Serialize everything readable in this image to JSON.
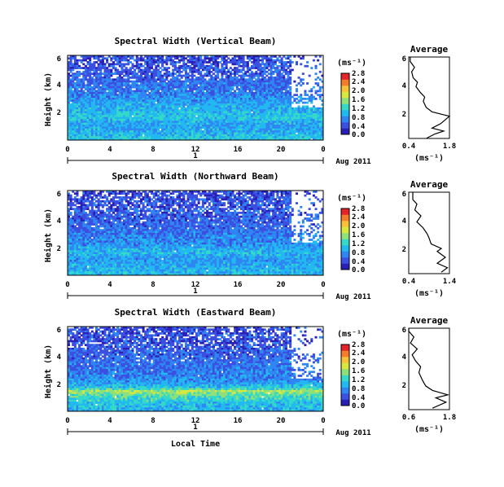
{
  "figure": {
    "xlabel": "Local Time",
    "date_label": "Aug 2011",
    "day_label": "1",
    "unit_label": "(ms⁻¹)",
    "average_title": "Average",
    "colormap": [
      "#2a1fb5",
      "#3b4fe0",
      "#2f86f2",
      "#22b8f0",
      "#35d9c8",
      "#8ee07a",
      "#d9e83f",
      "#f7c23a",
      "#f47c2b",
      "#e3252a"
    ]
  },
  "chart_data": [
    {
      "type": "heatmap",
      "title": "Spectral Width (Vertical Beam)",
      "xlabel": "",
      "ylabel": "Height (km)",
      "x_ticks": [
        "0",
        "4",
        "8",
        "12",
        "16",
        "20",
        "0"
      ],
      "y_ticks": [
        "2",
        "4",
        "6"
      ],
      "xlim": [
        0,
        24
      ],
      "ylim": [
        0.5,
        6.0
      ],
      "colorbar": {
        "ticks": [
          "0.0",
          "0.4",
          "0.8",
          "1.2",
          "1.6",
          "2.0",
          "2.4",
          "2.8"
        ],
        "range": [
          0.0,
          3.0
        ]
      },
      "height_profile_km": [
        [
          0.5,
          1.2
        ],
        [
          1.0,
          1.0
        ],
        [
          1.5,
          0.9
        ],
        [
          2.0,
          1.2
        ],
        [
          2.5,
          1.0
        ],
        [
          3.0,
          0.9
        ],
        [
          3.5,
          0.7
        ],
        [
          4.0,
          0.65
        ],
        [
          4.5,
          0.55
        ],
        [
          5.0,
          0.5
        ],
        [
          5.5,
          0.45
        ],
        [
          6.0,
          0.4
        ]
      ],
      "average": {
        "xticks": [
          "0.4",
          "1.8"
        ],
        "xlim": [
          0.4,
          1.8
        ],
        "xlabel": "(ms⁻¹)",
        "yticks": [
          "2",
          "4",
          "6"
        ],
        "ylim": [
          0.5,
          6.0
        ],
        "profile": [
          [
            1.0,
            0.5
          ],
          [
            1.3,
            0.8
          ],
          [
            1.6,
            1.0
          ],
          [
            1.2,
            1.2
          ],
          [
            1.5,
            1.5
          ],
          [
            1.8,
            2.0
          ],
          [
            1.6,
            2.1
          ],
          [
            1.2,
            2.3
          ],
          [
            1.0,
            2.6
          ],
          [
            0.9,
            3.0
          ],
          [
            0.95,
            3.3
          ],
          [
            0.8,
            3.6
          ],
          [
            0.65,
            4.0
          ],
          [
            0.7,
            4.3
          ],
          [
            0.55,
            4.6
          ],
          [
            0.5,
            5.0
          ],
          [
            0.6,
            5.3
          ],
          [
            0.45,
            5.7
          ],
          [
            0.45,
            6.0
          ]
        ]
      },
      "seed": 7
    },
    {
      "type": "heatmap",
      "title": "Spectral Width (Northward Beam)",
      "xlabel": "",
      "ylabel": "Height (km)",
      "x_ticks": [
        "0",
        "4",
        "8",
        "12",
        "16",
        "20",
        "0"
      ],
      "y_ticks": [
        "2",
        "4",
        "6"
      ],
      "xlim": [
        0,
        24
      ],
      "ylim": [
        0.5,
        6.0
      ],
      "colorbar": {
        "ticks": [
          "0.0",
          "0.4",
          "0.8",
          "1.2",
          "1.6",
          "2.0",
          "2.4",
          "2.8"
        ],
        "range": [
          0.0,
          3.0
        ]
      },
      "height_profile_km": [
        [
          0.5,
          1.1
        ],
        [
          1.0,
          1.0
        ],
        [
          1.5,
          0.85
        ],
        [
          2.0,
          1.1
        ],
        [
          2.5,
          0.8
        ],
        [
          3.0,
          0.75
        ],
        [
          3.5,
          0.6
        ],
        [
          4.0,
          0.55
        ],
        [
          4.5,
          0.5
        ],
        [
          5.0,
          0.45
        ],
        [
          5.5,
          0.45
        ],
        [
          6.0,
          0.4
        ]
      ],
      "average": {
        "xticks": [
          "0.4",
          "1.4"
        ],
        "xlim": [
          0.4,
          1.4
        ],
        "xlabel": "(ms⁻¹)",
        "yticks": [
          "2",
          "4",
          "6"
        ],
        "ylim": [
          0.5,
          6.0
        ],
        "profile": [
          [
            1.2,
            0.6
          ],
          [
            1.35,
            0.9
          ],
          [
            1.1,
            1.2
          ],
          [
            1.3,
            1.6
          ],
          [
            1.1,
            2.0
          ],
          [
            1.2,
            2.2
          ],
          [
            0.95,
            2.5
          ],
          [
            0.9,
            2.9
          ],
          [
            0.85,
            3.2
          ],
          [
            0.75,
            3.6
          ],
          [
            0.6,
            4.0
          ],
          [
            0.7,
            4.4
          ],
          [
            0.55,
            4.8
          ],
          [
            0.6,
            5.2
          ],
          [
            0.5,
            5.5
          ],
          [
            0.5,
            6.0
          ]
        ]
      },
      "seed": 19
    },
    {
      "type": "heatmap",
      "title": "Spectral Width (Eastward Beam)",
      "xlabel": "Local Time",
      "ylabel": "Height (km)",
      "x_ticks": [
        "0",
        "4",
        "8",
        "12",
        "16",
        "20",
        "0"
      ],
      "y_ticks": [
        "2",
        "4",
        "6"
      ],
      "xlim": [
        0,
        24
      ],
      "ylim": [
        0.5,
        6.0
      ],
      "colorbar": {
        "ticks": [
          "0.0",
          "0.4",
          "0.8",
          "1.2",
          "1.6",
          "2.0",
          "2.4",
          "2.8"
        ],
        "range": [
          0.0,
          3.0
        ]
      },
      "height_profile_km": [
        [
          0.5,
          1.0
        ],
        [
          1.0,
          1.1
        ],
        [
          1.5,
          1.4
        ],
        [
          1.8,
          1.8
        ],
        [
          2.0,
          1.2
        ],
        [
          2.5,
          0.8
        ],
        [
          3.0,
          0.7
        ],
        [
          3.5,
          0.65
        ],
        [
          4.0,
          0.55
        ],
        [
          4.5,
          0.5
        ],
        [
          5.0,
          0.45
        ],
        [
          5.5,
          0.45
        ],
        [
          6.0,
          0.4
        ]
      ],
      "average": {
        "xticks": [
          "0.6",
          "1.8"
        ],
        "xlim": [
          0.6,
          1.8
        ],
        "xlabel": "(ms⁻¹)",
        "yticks": [
          "2",
          "4",
          "6"
        ],
        "ylim": [
          0.5,
          6.0
        ],
        "profile": [
          [
            1.3,
            0.6
          ],
          [
            1.7,
            1.0
          ],
          [
            1.4,
            1.3
          ],
          [
            1.75,
            1.5
          ],
          [
            1.3,
            1.8
          ],
          [
            1.1,
            2.1
          ],
          [
            1.0,
            2.5
          ],
          [
            0.9,
            3.0
          ],
          [
            0.95,
            3.4
          ],
          [
            0.8,
            3.8
          ],
          [
            0.7,
            4.2
          ],
          [
            0.85,
            4.6
          ],
          [
            0.65,
            5.0
          ],
          [
            0.75,
            5.4
          ],
          [
            0.6,
            5.8
          ],
          [
            0.6,
            6.0
          ]
        ]
      },
      "seed": 31
    }
  ]
}
